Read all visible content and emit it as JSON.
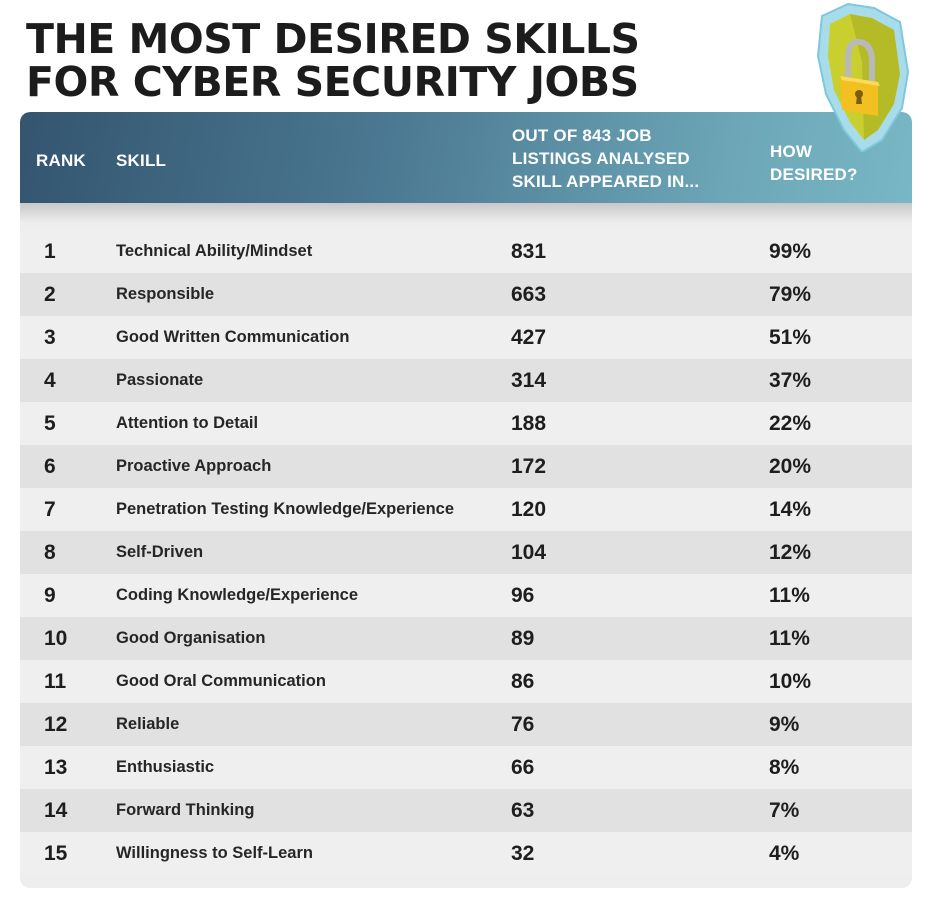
{
  "title": {
    "line1": "THE MOST DESIRED SKILLS",
    "line2": "FOR CYBER SECURITY JOBS"
  },
  "icon": "shield-padlock-icon",
  "colors": {
    "header_start": "#34556f",
    "header_end": "#78b7c5",
    "row_light": "#efefef",
    "row_dark": "#e1e1e1",
    "shield_outer": "#a9dceb",
    "shield_inner": "#c8cf2e",
    "padlock": "#f2c021"
  },
  "table": {
    "headers": {
      "rank": "RANK",
      "skill": "SKILL",
      "count_line1": "OUT OF 843 JOB",
      "count_line2": "LISTINGS ANALYSED",
      "count_line3": "SKILL APPEARED IN...",
      "desired_line1": "HOW",
      "desired_line2": "DESIRED?"
    },
    "rows": [
      {
        "rank": "1",
        "skill": "Technical Ability/Mindset",
        "count": "831",
        "pct": "99%"
      },
      {
        "rank": "2",
        "skill": "Responsible",
        "count": "663",
        "pct": "79%"
      },
      {
        "rank": "3",
        "skill": "Good Written Communication",
        "count": "427",
        "pct": "51%"
      },
      {
        "rank": "4",
        "skill": "Passionate",
        "count": "314",
        "pct": "37%"
      },
      {
        "rank": "5",
        "skill": "Attention to Detail",
        "count": "188",
        "pct": "22%"
      },
      {
        "rank": "6",
        "skill": "Proactive Approach",
        "count": "172",
        "pct": "20%"
      },
      {
        "rank": "7",
        "skill": "Penetration Testing Knowledge/Experience",
        "count": "120",
        "pct": "14%"
      },
      {
        "rank": "8",
        "skill": "Self-Driven",
        "count": "104",
        "pct": "12%"
      },
      {
        "rank": "9",
        "skill": "Coding Knowledge/Experience",
        "count": "96",
        "pct": "11%"
      },
      {
        "rank": "10",
        "skill": "Good Organisation",
        "count": "89",
        "pct": "11%"
      },
      {
        "rank": "11",
        "skill": "Good Oral Communication",
        "count": "86",
        "pct": "10%"
      },
      {
        "rank": "12",
        "skill": "Reliable",
        "count": "76",
        "pct": "9%"
      },
      {
        "rank": "13",
        "skill": "Enthusiastic",
        "count": "66",
        "pct": "8%"
      },
      {
        "rank": "14",
        "skill": "Forward Thinking",
        "count": "63",
        "pct": "7%"
      },
      {
        "rank": "15",
        "skill": "Willingness to Self-Learn",
        "count": "32",
        "pct": "4%"
      }
    ]
  },
  "chart_data": {
    "type": "table",
    "title": "THE MOST DESIRED SKILLS FOR CYBER SECURITY JOBS",
    "columns": [
      "RANK",
      "SKILL",
      "OUT OF 843 JOB LISTINGS ANALYSED SKILL APPEARED IN...",
      "HOW DESIRED?"
    ],
    "categories": [
      "Technical Ability/Mindset",
      "Responsible",
      "Good Written Communication",
      "Passionate",
      "Attention to Detail",
      "Proactive Approach",
      "Penetration Testing Knowledge/Experience",
      "Self-Driven",
      "Coding Knowledge/Experience",
      "Good Organisation",
      "Good Oral Communication",
      "Reliable",
      "Enthusiastic",
      "Forward Thinking",
      "Willingness to Self-Learn"
    ],
    "series": [
      {
        "name": "Job listings (of 843)",
        "values": [
          831,
          663,
          427,
          314,
          188,
          172,
          120,
          104,
          96,
          89,
          86,
          76,
          66,
          63,
          32
        ]
      },
      {
        "name": "How desired (%)",
        "values": [
          99,
          79,
          51,
          37,
          22,
          20,
          14,
          12,
          11,
          11,
          10,
          9,
          8,
          7,
          4
        ]
      }
    ],
    "total_listings": 843
  }
}
